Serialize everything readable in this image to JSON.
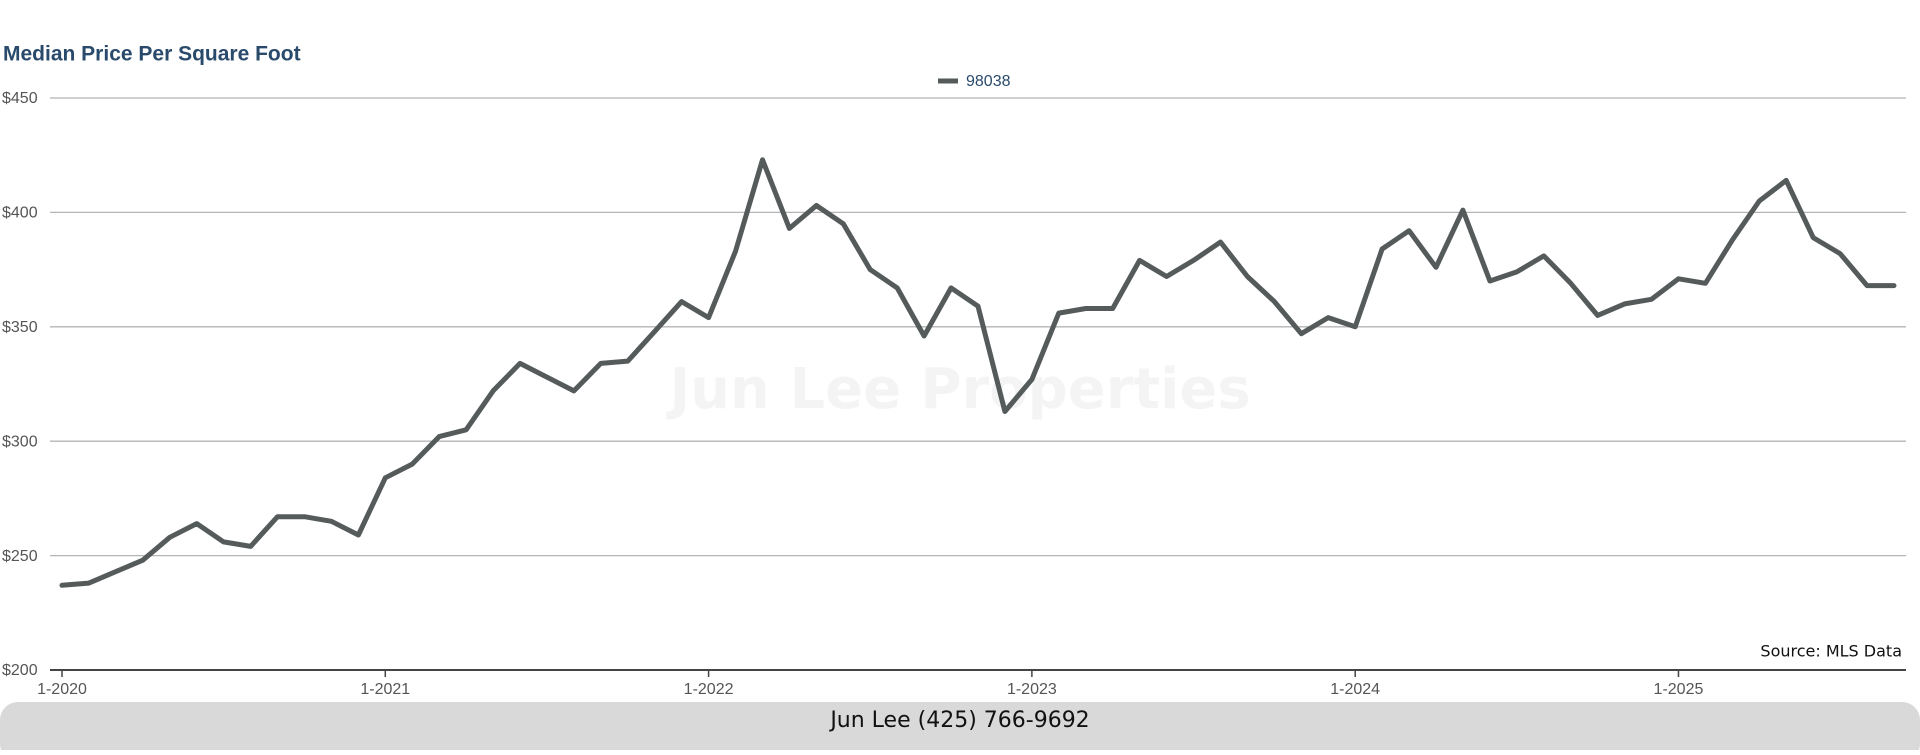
{
  "chart_data": {
    "type": "line",
    "title": "Median Price Per Square Foot",
    "watermark": "Jun Lee Properties",
    "source": "Source: MLS Data",
    "footer": "Jun Lee (425) 766-9692",
    "legend": "top",
    "grid": true,
    "x": [
      "2020-01",
      "2020-02",
      "2020-03",
      "2020-04",
      "2020-05",
      "2020-06",
      "2020-07",
      "2020-08",
      "2020-09",
      "2020-10",
      "2020-11",
      "2020-12",
      "2021-01",
      "2021-02",
      "2021-03",
      "2021-04",
      "2021-05",
      "2021-06",
      "2021-07",
      "2021-08",
      "2021-09",
      "2021-10",
      "2021-11",
      "2021-12",
      "2022-01",
      "2022-02",
      "2022-03",
      "2022-04",
      "2022-05",
      "2022-06",
      "2022-07",
      "2022-08",
      "2022-09",
      "2022-10",
      "2022-11",
      "2022-12",
      "2023-01",
      "2023-02",
      "2023-03",
      "2023-04",
      "2023-05",
      "2023-06",
      "2023-07",
      "2023-08",
      "2023-09",
      "2023-10",
      "2023-11",
      "2023-12",
      "2024-01",
      "2024-02",
      "2024-03",
      "2024-04",
      "2024-05",
      "2024-06",
      "2024-07",
      "2024-08",
      "2024-09",
      "2024-10",
      "2024-11",
      "2024-12",
      "2025-01",
      "2025-02",
      "2025-03",
      "2025-04",
      "2025-05",
      "2025-06",
      "2025-07",
      "2025-08",
      "2025-09"
    ],
    "series": [
      {
        "name": "98038",
        "color": "#555b5b",
        "values": [
          237,
          238,
          243,
          248,
          258,
          264,
          256,
          254,
          267,
          267,
          265,
          259,
          284,
          290,
          302,
          305,
          322,
          334,
          328,
          322,
          334,
          335,
          348,
          361,
          354,
          383,
          423,
          393,
          403,
          395,
          375,
          367,
          346,
          367,
          359,
          313,
          327,
          356,
          358,
          358,
          379,
          372,
          379,
          387,
          372,
          361,
          347,
          354,
          350,
          384,
          392,
          376,
          401,
          370,
          374,
          381,
          369,
          355,
          360,
          362,
          371,
          369,
          388,
          405,
          414,
          389,
          382,
          368,
          368
        ]
      }
    ],
    "xlim": [
      "2020-01",
      "2025-09"
    ],
    "xticks": [
      {
        "value": "2020-01",
        "label": "1-2020"
      },
      {
        "value": "2021-01",
        "label": "1-2021"
      },
      {
        "value": "2022-01",
        "label": "1-2022"
      },
      {
        "value": "2023-01",
        "label": "1-2023"
      },
      {
        "value": "2024-01",
        "label": "1-2024"
      },
      {
        "value": "2025-01",
        "label": "1-2025"
      }
    ],
    "ylim": [
      200,
      450
    ],
    "yticks": [
      {
        "value": 200,
        "label": "$200"
      },
      {
        "value": 250,
        "label": "$250"
      },
      {
        "value": 300,
        "label": "$300"
      },
      {
        "value": 350,
        "label": "$350"
      },
      {
        "value": 400,
        "label": "$400"
      },
      {
        "value": 450,
        "label": "$450"
      }
    ]
  }
}
